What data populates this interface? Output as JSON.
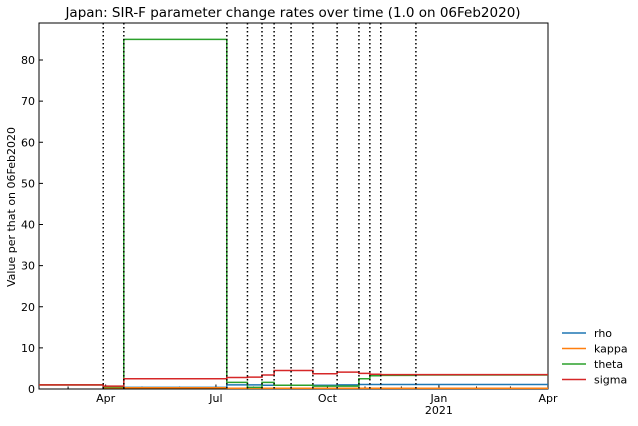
{
  "chart_data": {
    "type": "line",
    "title": "Japan: SIR-F parameter change rates over time (1.0 on 06Feb2020)",
    "ylabel": "Value per that on 06Feb2020",
    "xlabel": "",
    "x_range": [
      "2020-02-06",
      "2021-04-01"
    ],
    "ylim": [
      0,
      89
    ],
    "y_ticks": [
      0,
      10,
      20,
      30,
      40,
      50,
      60,
      70,
      80
    ],
    "x_ticks": [
      {
        "date": "2020-04-01",
        "label": "Apr",
        "sublabel": ""
      },
      {
        "date": "2020-07-01",
        "label": "Jul",
        "sublabel": ""
      },
      {
        "date": "2020-10-01",
        "label": "Oct",
        "sublabel": ""
      },
      {
        "date": "2021-01-01",
        "label": "Jan",
        "sublabel": "2021"
      },
      {
        "date": "2021-04-01",
        "label": "Apr",
        "sublabel": ""
      }
    ],
    "grid": false,
    "legend_position": "right-bottom",
    "change_dates": [
      "2020-03-30",
      "2020-04-16",
      "2020-07-10",
      "2020-07-27",
      "2020-08-08",
      "2020-08-18",
      "2020-09-01",
      "2020-09-19",
      "2020-10-09",
      "2020-10-27",
      "2020-11-05",
      "2020-11-14",
      "2020-12-13"
    ],
    "series": [
      {
        "name": "rho",
        "color": "#1f77b4",
        "points": [
          [
            "2020-02-06",
            1.0
          ],
          [
            "2020-03-30",
            0.4
          ],
          [
            "2020-04-16",
            0.4
          ],
          [
            "2020-07-10",
            1.0
          ],
          [
            "2020-07-27",
            1.0
          ],
          [
            "2020-08-08",
            0.9
          ],
          [
            "2020-08-18",
            0.9
          ],
          [
            "2020-09-01",
            0.9
          ],
          [
            "2020-09-19",
            0.9
          ],
          [
            "2020-10-09",
            1.0
          ],
          [
            "2020-10-27",
            1.1
          ],
          [
            "2020-11-05",
            1.1
          ],
          [
            "2020-11-14",
            1.1
          ],
          [
            "2020-12-13",
            1.1
          ],
          [
            "2021-04-01",
            1.1
          ]
        ]
      },
      {
        "name": "kappa",
        "color": "#ff7f0e",
        "points": [
          [
            "2020-02-06",
            1.0
          ],
          [
            "2020-03-30",
            0.3
          ],
          [
            "2020-04-16",
            0.3
          ],
          [
            "2020-07-10",
            0.2
          ],
          [
            "2020-07-27",
            0.2
          ],
          [
            "2020-08-08",
            0.2
          ],
          [
            "2020-08-18",
            0.2
          ],
          [
            "2020-09-01",
            0.2
          ],
          [
            "2020-09-19",
            0.2
          ],
          [
            "2020-10-09",
            0.2
          ],
          [
            "2020-10-27",
            0.2
          ],
          [
            "2020-11-05",
            0.2
          ],
          [
            "2020-11-14",
            0.2
          ],
          [
            "2020-12-13",
            0.2
          ],
          [
            "2021-04-01",
            0.2
          ]
        ]
      },
      {
        "name": "theta",
        "color": "#2ca02c",
        "points": [
          [
            "2020-02-06",
            1.0
          ],
          [
            "2020-03-30",
            0.5
          ],
          [
            "2020-04-16",
            85.0
          ],
          [
            "2020-07-10",
            1.6
          ],
          [
            "2020-07-27",
            0.4
          ],
          [
            "2020-08-08",
            1.6
          ],
          [
            "2020-08-18",
            0.9
          ],
          [
            "2020-09-01",
            0.9
          ],
          [
            "2020-09-19",
            0.7
          ],
          [
            "2020-10-09",
            0.7
          ],
          [
            "2020-10-27",
            2.5
          ],
          [
            "2020-11-05",
            3.2
          ],
          [
            "2020-11-14",
            3.3
          ],
          [
            "2020-12-13",
            3.4
          ],
          [
            "2021-04-01",
            3.4
          ]
        ]
      },
      {
        "name": "sigma",
        "color": "#d62728",
        "points": [
          [
            "2020-02-06",
            1.0
          ],
          [
            "2020-03-30",
            0.7
          ],
          [
            "2020-04-16",
            2.5
          ],
          [
            "2020-07-10",
            2.8
          ],
          [
            "2020-07-27",
            2.9
          ],
          [
            "2020-08-08",
            3.4
          ],
          [
            "2020-08-18",
            4.5
          ],
          [
            "2020-09-01",
            4.5
          ],
          [
            "2020-09-19",
            3.7
          ],
          [
            "2020-10-09",
            4.1
          ],
          [
            "2020-10-27",
            3.8
          ],
          [
            "2020-11-05",
            3.6
          ],
          [
            "2020-11-14",
            3.5
          ],
          [
            "2020-12-13",
            3.5
          ],
          [
            "2021-04-01",
            3.5
          ]
        ]
      }
    ]
  }
}
